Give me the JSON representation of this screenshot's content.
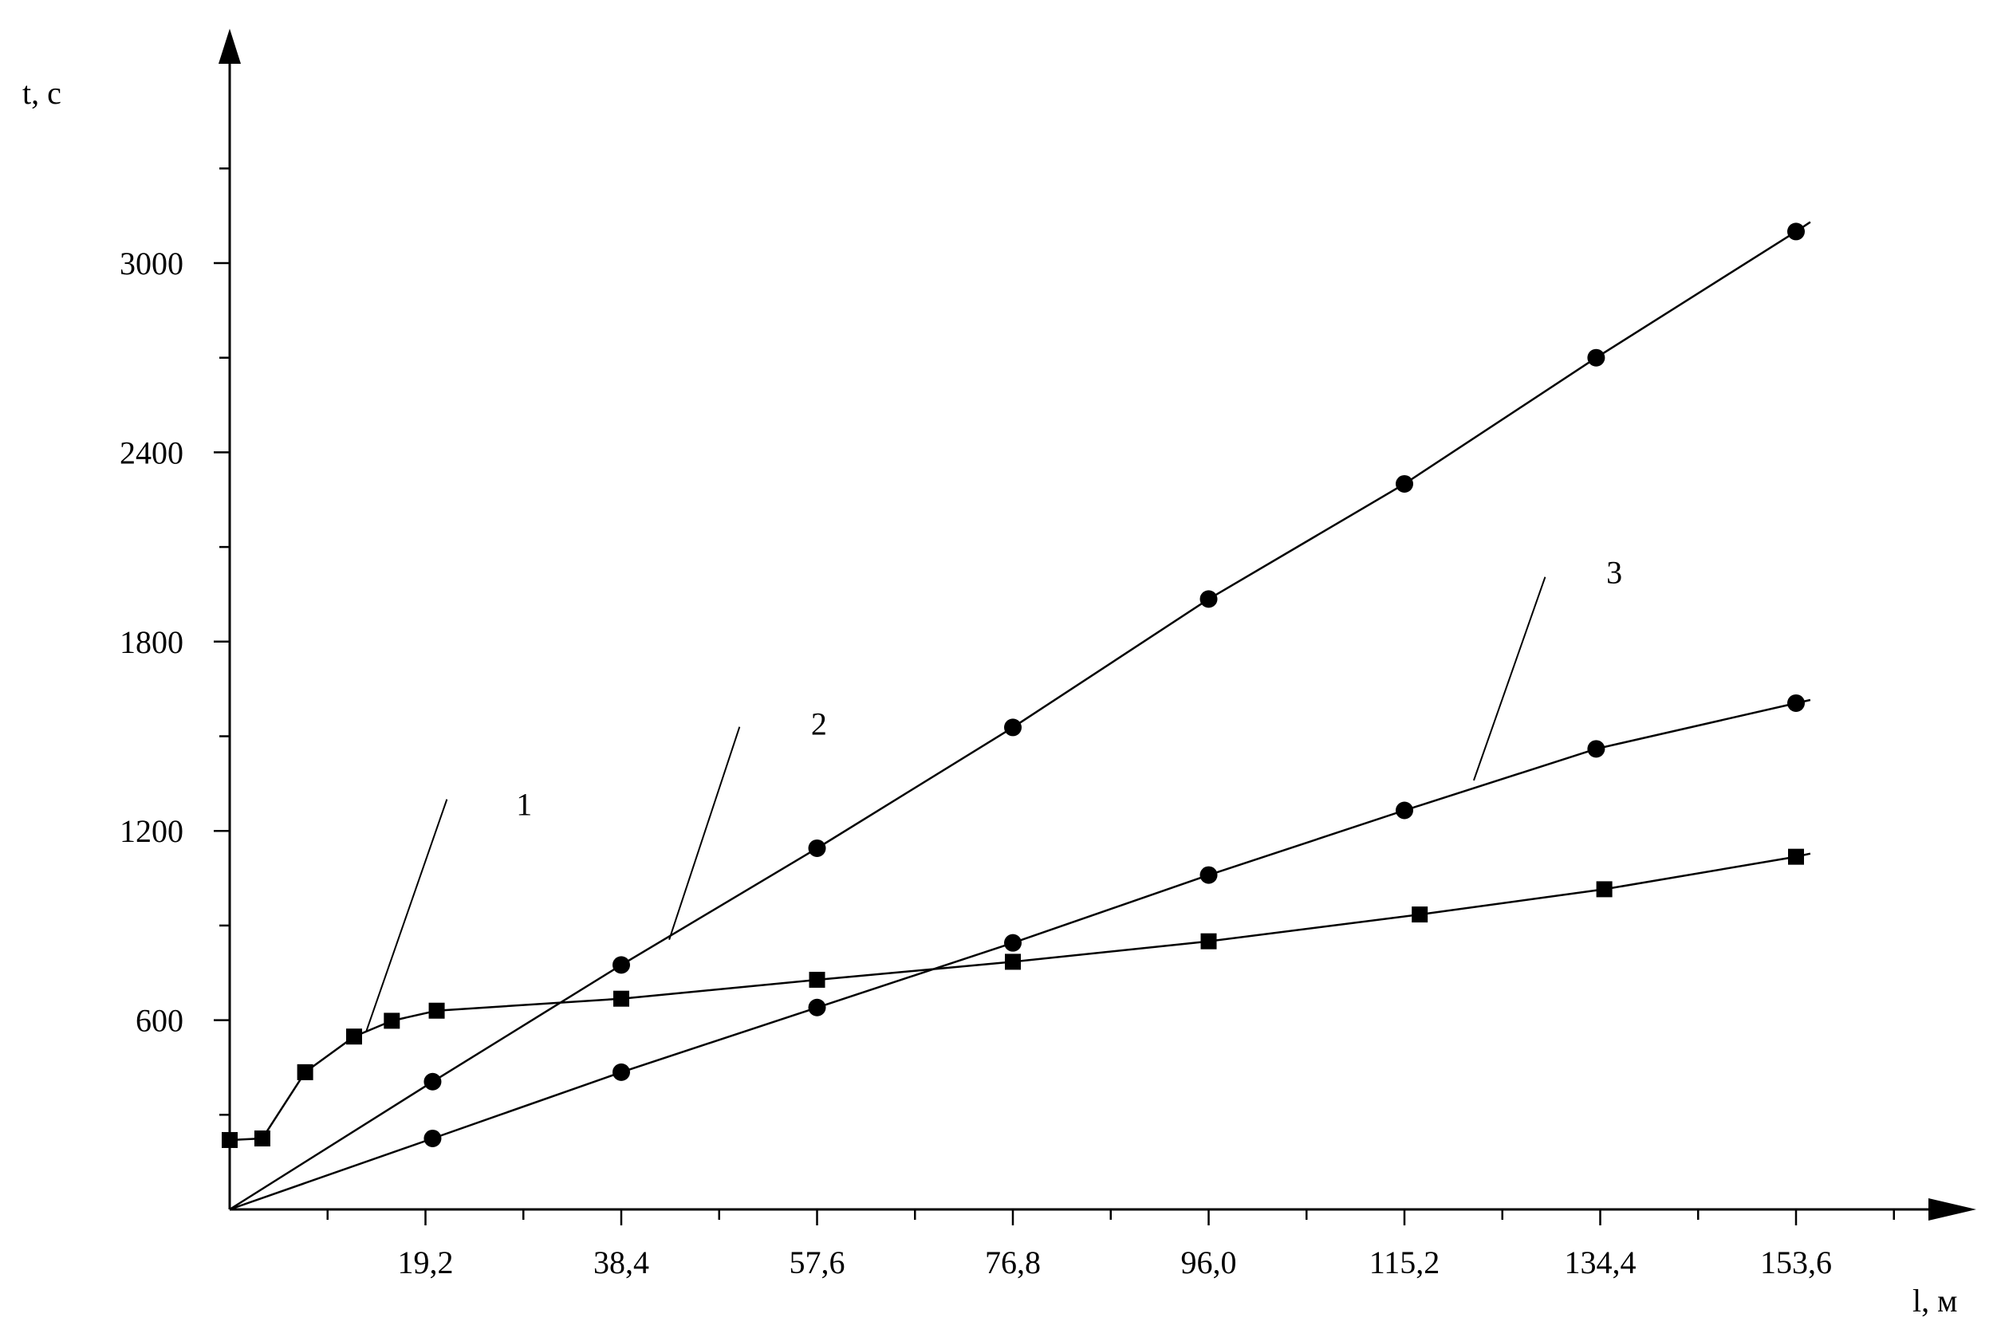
{
  "chart_data": {
    "type": "line",
    "title": "",
    "xlabel": "l, м",
    "ylabel": "t, с",
    "xlim": [
      0,
      172.8
    ],
    "ylim": [
      0,
      3600
    ],
    "x_ticks": [
      {
        "value": 19.2,
        "label": "19,2"
      },
      {
        "value": 38.4,
        "label": "38,4"
      },
      {
        "value": 57.6,
        "label": "57,6"
      },
      {
        "value": 76.8,
        "label": "76,8"
      },
      {
        "value": 96.0,
        "label": "96,0"
      },
      {
        "value": 115.2,
        "label": "115,2"
      },
      {
        "value": 134.4,
        "label": "134,4"
      },
      {
        "value": 153.6,
        "label": "153,6"
      }
    ],
    "x_minor_step": 9.6,
    "y_ticks": [
      {
        "value": 600,
        "label": "600"
      },
      {
        "value": 1200,
        "label": "1200"
      },
      {
        "value": 1800,
        "label": "1800"
      },
      {
        "value": 2400,
        "label": "2400"
      },
      {
        "value": 3000,
        "label": "3000"
      }
    ],
    "y_minor_step": 300,
    "grid": false,
    "series": [
      {
        "name": "1",
        "marker": "square",
        "points": [
          [
            0,
            220
          ],
          [
            3.2,
            225
          ],
          [
            7.4,
            435
          ],
          [
            12.2,
            548
          ],
          [
            15.9,
            598
          ],
          [
            20.3,
            630
          ],
          [
            38.4,
            668
          ],
          [
            57.6,
            728
          ],
          [
            76.8,
            785
          ],
          [
            96.0,
            850
          ],
          [
            116.7,
            935
          ],
          [
            134.8,
            1015
          ],
          [
            153.6,
            1118
          ]
        ],
        "line_end": [
          155.0,
          1128
        ]
      },
      {
        "name": "2",
        "marker": "circle",
        "points": [
          [
            19.9,
            405
          ],
          [
            38.4,
            775
          ],
          [
            57.6,
            1145
          ],
          [
            76.8,
            1528
          ],
          [
            96.0,
            1935
          ],
          [
            115.2,
            2300
          ],
          [
            134.0,
            2700
          ],
          [
            153.6,
            3100
          ]
        ],
        "line_start": [
          0,
          0
        ],
        "line_end": [
          155.0,
          3130
        ]
      },
      {
        "name": "3",
        "marker": "circle",
        "points": [
          [
            19.9,
            225
          ],
          [
            38.4,
            435
          ],
          [
            57.6,
            640
          ],
          [
            76.8,
            845
          ],
          [
            96.0,
            1060
          ],
          [
            115.2,
            1265
          ],
          [
            134.0,
            1460
          ],
          [
            153.6,
            1605
          ]
        ],
        "line_start": [
          0,
          0
        ],
        "line_end": [
          155.0,
          1615
        ]
      }
    ],
    "annotations": [
      {
        "text": "1",
        "at": [
          28.1,
          1250
        ],
        "leader_from": [
          21.3,
          1300
        ],
        "leader_to": [
          13.4,
          565
        ]
      },
      {
        "text": "2",
        "at": [
          57.0,
          1505
        ],
        "leader_from": [
          50.0,
          1530
        ],
        "leader_to": [
          43.1,
          855
        ]
      },
      {
        "text": "3",
        "at": [
          135.0,
          1985
        ],
        "leader_from": [
          129.0,
          2005
        ],
        "leader_to": [
          122.0,
          1360
        ]
      }
    ]
  }
}
